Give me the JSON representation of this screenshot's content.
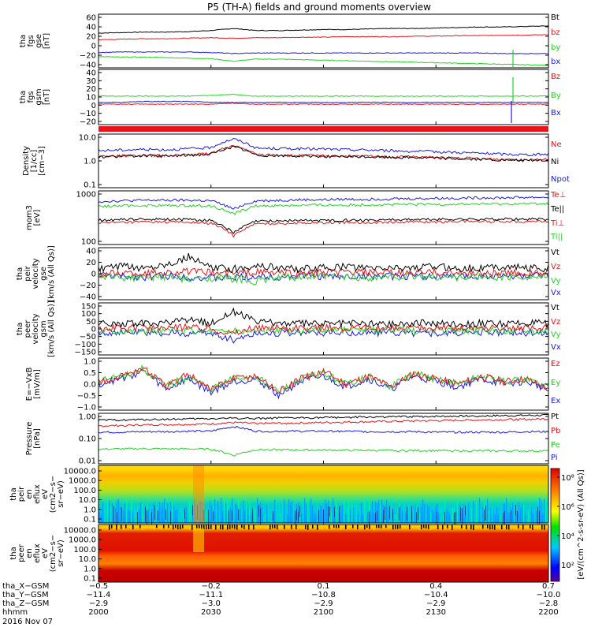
{
  "title": "P5 (TH-A) fields and ground moments overview",
  "colors": {
    "black": "#000000",
    "red": "#e8141a",
    "green": "#22d322",
    "blue": "#1a1ae6",
    "frame": "#000000"
  },
  "chart_data": [
    {
      "type": "line",
      "panel": "fgs-gse",
      "ylabel": [
        "tha",
        "fgs",
        "gse",
        "[nT]"
      ],
      "yticks": [
        "60",
        "40",
        "20",
        "0",
        "−20",
        "−40"
      ],
      "ylim": [
        -40,
        65
      ],
      "legend": [
        {
          "label": "Bt",
          "color": "black"
        },
        {
          "label": "bz",
          "color": "red"
        },
        {
          "label": "by",
          "color": "green"
        },
        {
          "label": "bx",
          "color": "blue"
        }
      ],
      "series": [
        {
          "name": "Bt",
          "color": "black",
          "y": [
            28,
            29,
            30,
            30,
            31,
            33,
            37,
            33,
            33,
            34,
            35,
            35,
            36,
            37,
            37,
            38,
            39,
            40,
            40,
            41,
            42
          ]
        },
        {
          "name": "bz",
          "color": "red",
          "y": [
            15,
            16,
            17,
            17,
            18,
            19,
            18,
            19,
            19,
            20,
            20,
            21,
            21,
            21,
            22,
            22,
            23,
            23,
            24,
            24,
            25
          ]
        },
        {
          "name": "by",
          "color": "green",
          "y": [
            -18,
            -19,
            -19,
            -20,
            -21,
            -22,
            -27,
            -23,
            -23,
            -24,
            -25,
            -26,
            -27,
            -28,
            -29,
            -30,
            -31,
            -32,
            -33,
            -34,
            -35
          ]
        },
        {
          "name": "bx",
          "color": "blue",
          "y": [
            -10,
            -9,
            -9,
            -9,
            -9,
            -10,
            -12,
            -11,
            -11,
            -11,
            -11,
            -11,
            -11,
            -11,
            -11,
            -11,
            -11,
            -11,
            -12,
            -12,
            -12
          ]
        }
      ]
    },
    {
      "type": "line",
      "panel": "fgs-gsm",
      "ylabel": [
        "tha",
        "fgs",
        "gsm",
        "[nT]"
      ],
      "yticks": [
        "40",
        "30",
        "20",
        "10",
        "0",
        "−10",
        "−20"
      ],
      "ylim": [
        -22,
        40
      ],
      "legend": [
        {
          "label": "Bz",
          "color": "red"
        },
        {
          "label": "By",
          "color": "green"
        },
        {
          "label": "Bx",
          "color": "blue"
        }
      ],
      "series": [
        {
          "name": "By",
          "color": "green",
          "y": [
            10,
            10,
            10,
            10,
            10,
            11,
            12,
            10,
            10,
            10,
            10,
            10,
            10,
            10,
            10,
            10,
            10,
            10,
            10,
            10,
            10
          ]
        },
        {
          "name": "Bx",
          "color": "blue",
          "y": [
            3,
            3,
            4,
            4,
            4,
            3,
            3,
            3,
            3,
            3,
            3,
            3,
            3,
            3,
            3,
            3,
            3,
            3,
            3,
            3,
            3
          ]
        },
        {
          "name": "Bz",
          "color": "red",
          "y": [
            1,
            1,
            1,
            1,
            1,
            1,
            2,
            1,
            1,
            1,
            1,
            1,
            1,
            1,
            1,
            1,
            1,
            1,
            1,
            1,
            1
          ]
        }
      ]
    },
    {
      "type": "line",
      "panel": "density",
      "log": true,
      "ylabel": [
        "Density",
        "[1/cc]",
        "[cm−3]"
      ],
      "yticks": [
        "10.0",
        "1.0",
        "0.1"
      ],
      "ylim": [
        0.1,
        15
      ],
      "legend": [
        {
          "label": "Ne",
          "color": "red"
        },
        {
          "label": "Ni",
          "color": "black"
        },
        {
          "label": "Npot",
          "color": "blue"
        }
      ],
      "series": [
        {
          "name": "Npot",
          "color": "blue",
          "y": [
            3.2,
            3.4,
            3.6,
            3.5,
            3.8,
            4.2,
            9.5,
            4.0,
            3.9,
            3.8,
            3.7,
            3.5,
            3.4,
            3.2,
            3.0,
            2.9,
            2.7,
            2.5,
            2.3,
            2.2,
            2.3
          ]
        },
        {
          "name": "Ne",
          "color": "red",
          "y": [
            1.9,
            2.0,
            2.1,
            2.0,
            2.2,
            2.4,
            5.0,
            2.2,
            2.1,
            2.0,
            2.0,
            1.9,
            1.9,
            1.8,
            1.8,
            1.7,
            1.6,
            1.5,
            1.4,
            1.4,
            1.4
          ]
        },
        {
          "name": "Ni",
          "color": "black",
          "y": [
            1.8,
            1.9,
            2.0,
            1.9,
            2.1,
            2.3,
            4.6,
            2.1,
            2.0,
            1.9,
            1.9,
            1.8,
            1.8,
            1.7,
            1.7,
            1.6,
            1.5,
            1.4,
            1.3,
            1.3,
            1.3
          ]
        }
      ]
    },
    {
      "type": "line",
      "panel": "temperature",
      "log": true,
      "ylabel": [
        "mom3",
        "[eV]"
      ],
      "yticks": [
        "1000",
        "100"
      ],
      "ylim": [
        60,
        2500
      ],
      "legend": [
        {
          "label": "Te⊥",
          "color": "red"
        },
        {
          "label": "Te||",
          "color": "black"
        },
        {
          "label": "Ti⊥",
          "color": "red"
        },
        {
          "label": "Ti||",
          "color": "green"
        }
      ],
      "series": [
        {
          "name": "Ti⊥",
          "color": "blue",
          "y": [
            1200,
            1250,
            1300,
            1300,
            1300,
            1250,
            700,
            1250,
            1300,
            1350,
            1350,
            1400,
            1400,
            1450,
            1450,
            1500,
            1500,
            1550,
            1550,
            1600,
            1600
          ]
        },
        {
          "name": "Ti||",
          "color": "green",
          "y": [
            850,
            880,
            900,
            900,
            900,
            880,
            500,
            880,
            900,
            920,
            930,
            940,
            950,
            960,
            970,
            980,
            990,
            1000,
            1000,
            1020,
            1020
          ]
        },
        {
          "name": "Te⊥",
          "color": "red",
          "y": [
            270,
            280,
            290,
            290,
            280,
            260,
            110,
            250,
            260,
            270,
            270,
            280,
            280,
            290,
            290,
            290,
            300,
            300,
            300,
            300,
            300
          ]
        },
        {
          "name": "Te||",
          "color": "black",
          "y": [
            330,
            340,
            350,
            350,
            340,
            320,
            130,
            300,
            310,
            320,
            320,
            330,
            330,
            340,
            340,
            340,
            350,
            350,
            350,
            350,
            350
          ]
        }
      ]
    },
    {
      "type": "line",
      "panel": "velocity-gse",
      "ylabel": [
        "tha",
        "peir",
        "velocity",
        "gse",
        "[km/s (All Qs)]"
      ],
      "yticks": [
        "40",
        "20",
        "0",
        "−20",
        "−40"
      ],
      "ylim": [
        -40,
        45
      ],
      "legend": [
        {
          "label": "Vt",
          "color": "black"
        },
        {
          "label": "Vz",
          "color": "red"
        },
        {
          "label": "Vy",
          "color": "green"
        },
        {
          "label": "Vx",
          "color": "blue"
        }
      ],
      "series": [
        {
          "name": "Vx",
          "color": "blue",
          "y": [
            0,
            -2,
            -3,
            -1,
            -3,
            -5,
            -4,
            -2,
            -3,
            -1,
            -2,
            -3,
            -1,
            -2,
            -1,
            -2,
            -3,
            -1,
            -2,
            -1,
            -2
          ]
        },
        {
          "name": "Vy",
          "color": "green",
          "y": [
            -4,
            -3,
            -5,
            -2,
            -8,
            -4,
            -6,
            -10,
            -4,
            -3,
            -2,
            -3,
            -4,
            -3,
            -2,
            -3,
            -4,
            -3,
            -3,
            -2,
            -3
          ]
        },
        {
          "name": "Vz",
          "color": "red",
          "y": [
            2,
            4,
            3,
            5,
            6,
            4,
            3,
            5,
            4,
            3,
            4,
            5,
            4,
            3,
            4,
            5,
            3,
            4,
            3,
            4,
            3
          ]
        },
        {
          "name": "Vt",
          "color": "black",
          "y": [
            10,
            14,
            12,
            18,
            30,
            12,
            10,
            16,
            12,
            10,
            12,
            14,
            11,
            12,
            13,
            14,
            11,
            12,
            14,
            12,
            11
          ]
        }
      ]
    },
    {
      "type": "line",
      "panel": "velocity-gsm",
      "ylabel": [
        "tha",
        "peer",
        "velocity",
        "gsm",
        "[km/s (All Qs)]"
      ],
      "yticks": [
        "150",
        "100",
        "50",
        "0",
        "−50",
        "−100",
        "−150"
      ],
      "ylim": [
        -150,
        160
      ],
      "legend": [
        {
          "label": "Vt",
          "color": "black"
        },
        {
          "label": "Vz",
          "color": "red"
        },
        {
          "label": "Vy",
          "color": "green"
        },
        {
          "label": "Vx",
          "color": "blue"
        }
      ],
      "series": [
        {
          "name": "Vx",
          "color": "blue",
          "y": [
            -15,
            -18,
            -16,
            -20,
            -22,
            -18,
            -60,
            -20,
            -18,
            -16,
            -18,
            -20,
            -17,
            -16,
            -18,
            -20,
            -17,
            -18,
            -16,
            -18,
            -17
          ]
        },
        {
          "name": "Vy",
          "color": "green",
          "y": [
            -5,
            -4,
            -6,
            -5,
            -7,
            -6,
            -10,
            -5,
            -6,
            -5,
            -4,
            -5,
            -6,
            -5,
            -4,
            -5,
            -6,
            -5,
            -4,
            -5,
            -5
          ]
        },
        {
          "name": "Vz",
          "color": "red",
          "y": [
            10,
            8,
            12,
            10,
            14,
            10,
            -20,
            12,
            10,
            8,
            10,
            12,
            10,
            8,
            10,
            12,
            10,
            9,
            10,
            11,
            10
          ]
        },
        {
          "name": "Vt",
          "color": "black",
          "y": [
            35,
            38,
            36,
            40,
            55,
            40,
            110,
            45,
            40,
            38,
            36,
            40,
            38,
            36,
            38,
            40,
            37,
            38,
            36,
            38,
            37
          ]
        }
      ]
    },
    {
      "type": "line",
      "panel": "efield",
      "ylabel": [
        "E=−VxB",
        "[mV/m]"
      ],
      "yticks": [
        "1.0",
        "0.5",
        "0.0",
        "−0.5",
        "−1.0"
      ],
      "ylim": [
        -1.0,
        1.0
      ],
      "legend": [
        {
          "label": "Ez",
          "color": "red"
        },
        {
          "label": "Ey",
          "color": "green"
        },
        {
          "label": "Ex",
          "color": "blue"
        }
      ],
      "series": [
        {
          "name": "Ex",
          "color": "blue",
          "y": [
            0.0,
            0.2,
            0.5,
            -0.2,
            0.2,
            -0.3,
            0.1,
            0.2,
            -0.4,
            0.1,
            0.3,
            -0.1,
            0.2,
            -0.2,
            0.3,
            0.1,
            -0.1,
            0.2,
            0.0,
            0.1,
            -0.2
          ]
        },
        {
          "name": "Ey",
          "color": "green",
          "y": [
            0.1,
            0.3,
            0.6,
            -0.1,
            0.3,
            -0.2,
            0.2,
            0.3,
            -0.3,
            0.2,
            0.4,
            0.0,
            0.3,
            -0.1,
            0.4,
            0.2,
            0.0,
            0.3,
            0.1,
            0.2,
            -0.1
          ]
        },
        {
          "name": "Ez",
          "color": "red",
          "y": [
            0.1,
            0.3,
            0.6,
            -0.1,
            0.4,
            -0.2,
            0.2,
            0.3,
            -0.3,
            0.2,
            0.5,
            0.0,
            0.3,
            -0.1,
            0.4,
            0.2,
            0.0,
            0.3,
            0.1,
            0.2,
            -0.2
          ]
        }
      ]
    },
    {
      "type": "line",
      "panel": "pressure",
      "log": true,
      "ylabel": [
        "Pressure",
        "[nPa]"
      ],
      "yticks": [
        "1.00",
        "0.10",
        "0.01"
      ],
      "ylim": [
        0.01,
        1.2
      ],
      "legend": [
        {
          "label": "Pt",
          "color": "black"
        },
        {
          "label": "Pb",
          "color": "red"
        },
        {
          "label": "Pe",
          "color": "green"
        },
        {
          "label": "Pi",
          "color": "blue"
        }
      ],
      "series": [
        {
          "name": "Pt",
          "color": "black",
          "y": [
            0.62,
            0.64,
            0.66,
            0.68,
            0.7,
            0.72,
            0.76,
            0.74,
            0.76,
            0.78,
            0.8,
            0.82,
            0.84,
            0.86,
            0.88,
            0.9,
            0.92,
            0.94,
            0.96,
            0.98,
            1.0
          ]
        },
        {
          "name": "Pb",
          "color": "red",
          "y": [
            0.36,
            0.38,
            0.4,
            0.41,
            0.42,
            0.44,
            0.5,
            0.46,
            0.47,
            0.48,
            0.5,
            0.52,
            0.54,
            0.56,
            0.58,
            0.6,
            0.62,
            0.64,
            0.66,
            0.68,
            0.7
          ]
        },
        {
          "name": "Pi",
          "color": "blue",
          "y": [
            0.2,
            0.2,
            0.21,
            0.21,
            0.22,
            0.22,
            0.34,
            0.22,
            0.22,
            0.22,
            0.22,
            0.22,
            0.21,
            0.21,
            0.21,
            0.2,
            0.2,
            0.2,
            0.2,
            0.21,
            0.21
          ]
        },
        {
          "name": "Pe",
          "color": "green",
          "y": [
            0.04,
            0.041,
            0.042,
            0.041,
            0.041,
            0.04,
            0.022,
            0.038,
            0.038,
            0.037,
            0.037,
            0.036,
            0.036,
            0.035,
            0.035,
            0.035,
            0.034,
            0.034,
            0.034,
            0.034,
            0.034
          ]
        }
      ]
    },
    {
      "type": "heatmap",
      "panel": "ion-spectrum",
      "ylabel": [
        "tha",
        "peir",
        "en",
        "eflux",
        "eV",
        "(cm2−s−",
        "sr−eV)"
      ],
      "yticks": [
        "10000.0",
        "1000.0",
        "100.0",
        "10.0",
        "1.0",
        "0.1"
      ]
    },
    {
      "type": "heatmap",
      "panel": "electron-spectrum",
      "ylabel": [
        "tha",
        "peer",
        "en",
        "eflux",
        "eV",
        "(cm2−s−",
        "sr−eV)"
      ],
      "yticks": [
        "10000.0",
        "1000.0",
        "100.0",
        "10.0",
        "1.0",
        "0.1"
      ]
    }
  ],
  "colorbar": {
    "ticks": [
      "10⁸",
      "10⁶",
      "10⁴",
      "10²"
    ],
    "title": "[eV/(cm^2-s-sr-eV) (All Qs)]"
  },
  "xaxis": {
    "row_labels": [
      "tha_X−GSM",
      "tha_Y−GSM",
      "tha_Z−GSM",
      "hhmm",
      "2016 Nov 07"
    ],
    "ticks": [
      {
        "x": "−0.5",
        "y": "−11.4",
        "z": "−2.9",
        "t": "2000"
      },
      {
        "x": "−0.2",
        "y": "−11.1",
        "z": "−3.0",
        "t": "2030"
      },
      {
        "x": "0.1",
        "y": "−10.8",
        "z": "−2.9",
        "t": "2100"
      },
      {
        "x": "0.4",
        "y": "−10.4",
        "z": "−2.9",
        "t": "2130"
      },
      {
        "x": "0.7",
        "y": "−10.0",
        "z": "−2.8",
        "t": "2200"
      }
    ]
  }
}
